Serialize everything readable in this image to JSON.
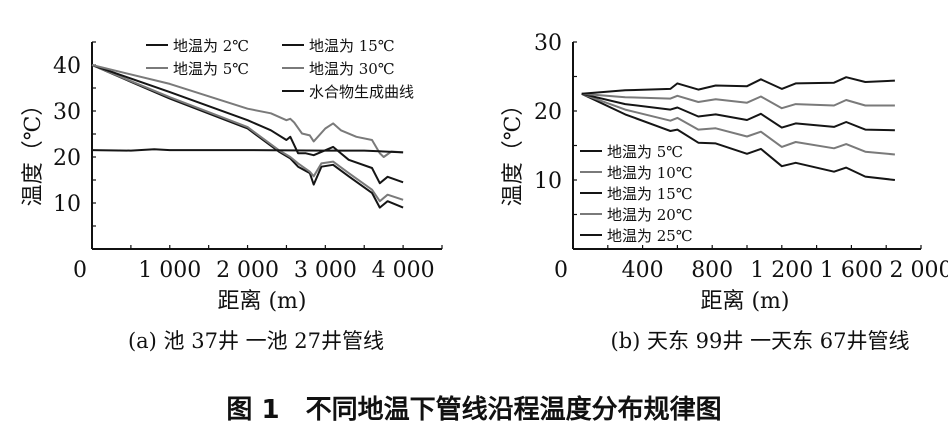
{
  "caption": "图 1　不同地温下管线沿程温度分布规律图",
  "colors": {
    "dark": "#151515",
    "gray": "#7a7a7a"
  },
  "chart_data": [
    {
      "type": "line",
      "subtitle": "(a) 池 37井 一池 27井管线",
      "xlabel": "距离 (m)",
      "ylabel": "温度（℃）",
      "xlim": [
        0,
        4500
      ],
      "ylim": [
        0,
        45
      ],
      "xticks": [
        0,
        1000,
        2000,
        3000,
        4000
      ],
      "xtick_labels": [
        "0",
        "1 000",
        "2 000",
        "3 000",
        "4 000"
      ],
      "yticks": [
        10,
        20,
        30,
        40
      ],
      "ytick_labels": [
        "10",
        "20",
        "30",
        "40"
      ],
      "legend_position": "top-right",
      "series": [
        {
          "name": "地温为 2℃",
          "color": "dark",
          "x": [
            0,
            1000,
            2000,
            2400,
            2550,
            2650,
            2800,
            2850,
            2950,
            3100,
            3300,
            3600,
            3700,
            3800,
            4000
          ],
          "y": [
            40,
            32.7,
            26.2,
            21.2,
            19.7,
            17.9,
            16.5,
            14,
            17.9,
            18.3,
            15.8,
            12.2,
            9,
            10.4,
            9
          ]
        },
        {
          "name": "地温为 5℃",
          "color": "gray",
          "x": [
            0,
            1000,
            2000,
            2400,
            2550,
            2650,
            2800,
            2850,
            2950,
            3100,
            3300,
            3600,
            3700,
            3800,
            4000
          ],
          "y": [
            40,
            33,
            26.5,
            21.5,
            20,
            18.6,
            16.8,
            15.8,
            18.6,
            19,
            16.5,
            12.9,
            10.4,
            11.8,
            10.7
          ]
        },
        {
          "name": "地温为 15℃",
          "color": "dark",
          "x": [
            0,
            1000,
            2000,
            2300,
            2500,
            2550,
            2650,
            2750,
            2850,
            3100,
            3300,
            3600,
            3700,
            3800,
            4000
          ],
          "y": [
            40,
            34.1,
            28,
            25.8,
            23.7,
            24.4,
            20.8,
            20.8,
            20.4,
            22.2,
            19.4,
            17.6,
            14.3,
            15.7,
            14.5
          ]
        },
        {
          "name": "地温为 30℃",
          "color": "gray",
          "x": [
            0,
            1000,
            2000,
            2300,
            2500,
            2550,
            2600,
            2700,
            2800,
            2850,
            3000,
            3100,
            3200,
            3400,
            3600,
            3700,
            3750,
            3850,
            4000
          ],
          "y": [
            40,
            35.9,
            30.5,
            29.5,
            28,
            28.3,
            27.5,
            25.1,
            24.7,
            23.4,
            26.2,
            27.3,
            25.8,
            24.4,
            23.7,
            20.8,
            20,
            21.2,
            21
          ]
        },
        {
          "name": "水合物生成曲线",
          "color": "dark",
          "x": [
            0,
            500,
            800,
            1000,
            2000,
            3000,
            3500,
            4000
          ],
          "y": [
            21.5,
            21.4,
            21.7,
            21.5,
            21.5,
            21.4,
            21.4,
            21
          ]
        }
      ]
    },
    {
      "type": "line",
      "subtitle": "(b) 天东 99井 一天东 67井管线",
      "xlabel": "距离 (m)",
      "ylabel": "温度（℃）",
      "xlim": [
        0,
        2000
      ],
      "ylim": [
        0,
        30
      ],
      "xticks": [
        0,
        400,
        800,
        1200,
        1600,
        2000
      ],
      "xtick_labels": [
        "0",
        "400",
        "800",
        "1 200",
        "1 600",
        "2 000"
      ],
      "yticks": [
        10,
        20,
        30
      ],
      "ytick_labels": [
        "10",
        "20",
        "30"
      ],
      "legend_position": "bottom-left",
      "series": [
        {
          "name": "地温为 5℃",
          "color": "dark",
          "x": [
            50,
            300,
            560,
            600,
            720,
            820,
            1000,
            1080,
            1200,
            1280,
            1500,
            1570,
            1680,
            1850
          ],
          "y": [
            22.5,
            19.5,
            17.1,
            17.3,
            15.4,
            15.3,
            13.8,
            14.5,
            12,
            12.5,
            11.2,
            11.8,
            10.5,
            10
          ]
        },
        {
          "name": "地温为 10℃",
          "color": "gray",
          "x": [
            50,
            300,
            560,
            600,
            720,
            820,
            1000,
            1080,
            1200,
            1280,
            1500,
            1570,
            1680,
            1850
          ],
          "y": [
            22.5,
            20.2,
            18.6,
            19,
            17.3,
            17.5,
            16.3,
            17,
            14.8,
            15.5,
            14.6,
            15.2,
            14.1,
            13.7
          ]
        },
        {
          "name": "地温为 15℃",
          "color": "dark",
          "x": [
            50,
            300,
            560,
            600,
            720,
            820,
            1000,
            1080,
            1200,
            1280,
            1500,
            1570,
            1680,
            1850
          ],
          "y": [
            22.5,
            21,
            20.2,
            20.5,
            19.2,
            19.5,
            18.7,
            19.6,
            17.6,
            18.2,
            17.7,
            18.4,
            17.3,
            17.2
          ]
        },
        {
          "name": "地温为 20℃",
          "color": "gray",
          "x": [
            50,
            300,
            560,
            600,
            720,
            820,
            1000,
            1080,
            1200,
            1280,
            1500,
            1570,
            1680,
            1850
          ],
          "y": [
            22.5,
            22,
            21.8,
            22.2,
            21.3,
            21.7,
            21.2,
            22.1,
            20.4,
            21,
            20.8,
            21.6,
            20.8,
            20.8
          ]
        },
        {
          "name": "地温为 25℃",
          "color": "dark",
          "x": [
            50,
            300,
            560,
            600,
            720,
            820,
            1000,
            1080,
            1200,
            1280,
            1500,
            1570,
            1680,
            1850
          ],
          "y": [
            22.5,
            23,
            23.2,
            24,
            23.1,
            23.7,
            23.6,
            24.6,
            23.2,
            24,
            24.1,
            24.9,
            24.2,
            24.4
          ]
        }
      ]
    }
  ]
}
